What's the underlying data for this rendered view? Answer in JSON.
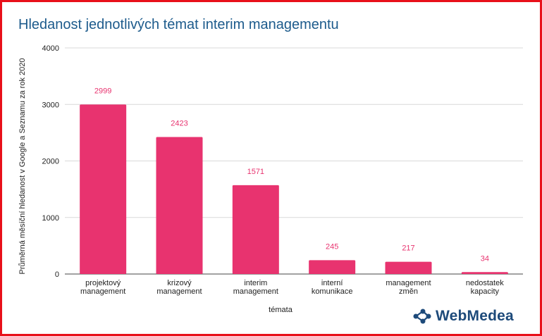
{
  "chart_data": {
    "type": "bar",
    "title": "Hledanost jednotlivých témat interim managementu",
    "xlabel": "témata",
    "ylabel": "Průměrná měsíční hledanost v Google a Seznamu za rok 2020",
    "categories": [
      [
        "projektový",
        "management"
      ],
      [
        "krizový",
        "management"
      ],
      [
        "interim",
        "management"
      ],
      [
        "interní",
        "komunikace"
      ],
      [
        "management",
        "změn"
      ],
      [
        "nedostatek",
        "kapacity"
      ]
    ],
    "values": [
      2999,
      2423,
      1571,
      245,
      217,
      34
    ],
    "ylim": [
      0,
      4000
    ],
    "yticks": [
      0,
      1000,
      2000,
      3000,
      4000
    ],
    "grid": true,
    "bar_color": "#e8336f",
    "label_color": "#e8336f"
  },
  "branding": {
    "logo_text": "WebMedea",
    "logo_icon": "network-nodes-icon",
    "logo_color": "#1d4a7a"
  },
  "frame_color": "#e8101a"
}
